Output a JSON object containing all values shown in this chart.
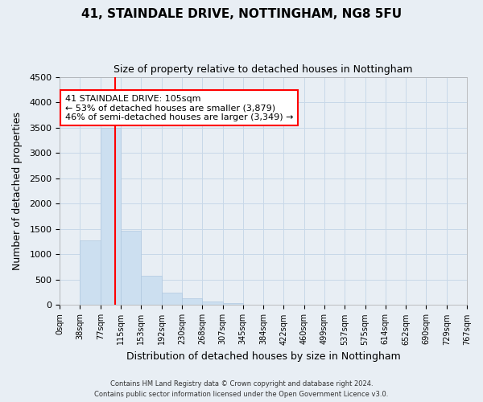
{
  "title1": "41, STAINDALE DRIVE, NOTTINGHAM, NG8 5FU",
  "title2": "Size of property relative to detached houses in Nottingham",
  "xlabel": "Distribution of detached houses by size in Nottingham",
  "ylabel": "Number of detached properties",
  "footnote1": "Contains HM Land Registry data © Crown copyright and database right 2024.",
  "footnote2": "Contains public sector information licensed under the Open Government Licence v3.0.",
  "bin_labels": [
    "0sqm",
    "38sqm",
    "77sqm",
    "115sqm",
    "153sqm",
    "192sqm",
    "230sqm",
    "268sqm",
    "307sqm",
    "345sqm",
    "384sqm",
    "422sqm",
    "460sqm",
    "499sqm",
    "537sqm",
    "575sqm",
    "614sqm",
    "652sqm",
    "690sqm",
    "729sqm",
    "767sqm"
  ],
  "bar_values": [
    0,
    1270,
    3500,
    1470,
    580,
    245,
    130,
    75,
    40,
    10,
    5,
    0,
    0,
    0,
    0,
    0,
    0,
    0,
    0,
    0
  ],
  "bar_color": "#ccdff0",
  "bar_edgecolor": "#b0c8e0",
  "grid_color": "#c8d8e8",
  "vline_color": "red",
  "ylim": [
    0,
    4500
  ],
  "yticks": [
    0,
    500,
    1000,
    1500,
    2000,
    2500,
    3000,
    3500,
    4000,
    4500
  ],
  "annotation_text": "41 STAINDALE DRIVE: 105sqm\n← 53% of detached houses are smaller (3,879)\n46% of semi-detached houses are larger (3,349) →",
  "annotation_box_color": "white",
  "annotation_box_edgecolor": "red",
  "bg_color": "#e8eef4",
  "title_fontsize": 11,
  "subtitle_fontsize": 9,
  "axis_label_fontsize": 9,
  "tick_fontsize": 8,
  "annotation_fontsize": 8
}
